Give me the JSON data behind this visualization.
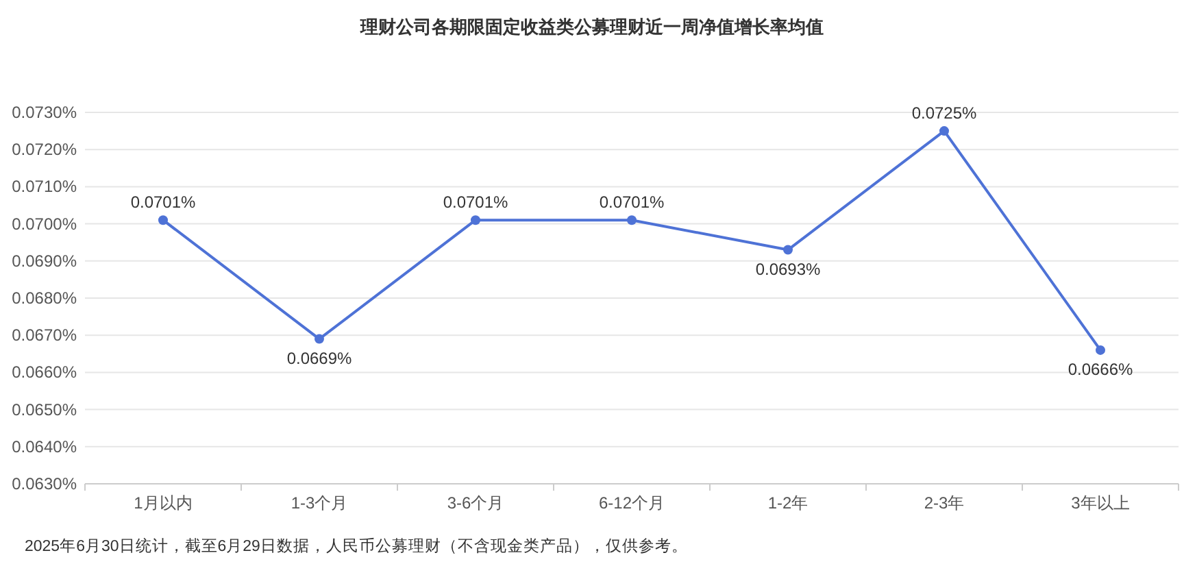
{
  "chart_data": {
    "type": "line",
    "title": "理财公司各期限固定收益类公募理财近一周净值增长率均值",
    "categories": [
      "1月以内",
      "1-3个月",
      "3-6个月",
      "6-12个月",
      "1-2年",
      "2-3年",
      "3年以上"
    ],
    "series": [
      {
        "color": "#4e72d6",
        "values": [
          0.0701,
          0.0669,
          0.0701,
          0.0701,
          0.0693,
          0.0725,
          0.0666
        ],
        "value_labels": [
          "0.0701%",
          "0.0669%",
          "0.0701%",
          "0.0701%",
          "0.0693%",
          "0.0725%",
          "0.0666%"
        ]
      }
    ],
    "ylim": [
      0.063,
      0.073
    ],
    "yticks": [
      {
        "value": 0.063,
        "label": "0.0630%"
      },
      {
        "value": 0.064,
        "label": "0.0640%"
      },
      {
        "value": 0.065,
        "label": "0.0650%"
      },
      {
        "value": 0.066,
        "label": "0.0660%"
      },
      {
        "value": 0.067,
        "label": "0.0670%"
      },
      {
        "value": 0.068,
        "label": "0.0680%"
      },
      {
        "value": 0.069,
        "label": "0.0690%"
      },
      {
        "value": 0.07,
        "label": "0.0700%"
      },
      {
        "value": 0.071,
        "label": "0.0710%"
      },
      {
        "value": 0.072,
        "label": "0.0720%"
      },
      {
        "value": 0.073,
        "label": "0.0730%"
      }
    ],
    "grid": "y",
    "marker": "circle",
    "line_style": "solid",
    "annotations": [
      "2025年6月30日统计，截至6月29日数据，人民币公募理财（不含现金类产品），仅供参考。"
    ]
  }
}
